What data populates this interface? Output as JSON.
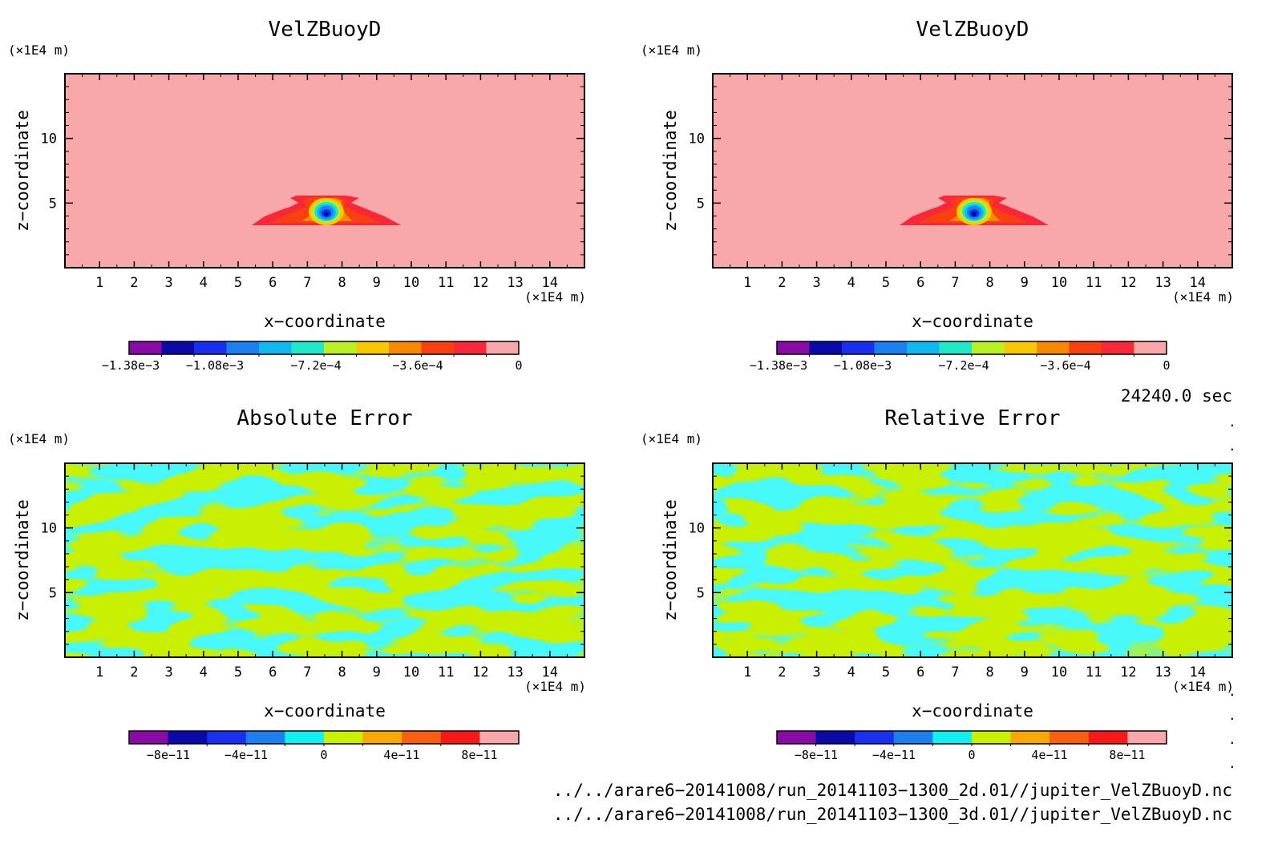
{
  "panels": [
    {
      "title": "VelZBuoyD",
      "y_unit": "(×1E4 m)",
      "x_unit": "(×1E4 m)",
      "xlabel": "x−coordinate",
      "ylabel": "z−coordinate",
      "x_ticks": [
        "1",
        "2",
        "3",
        "4",
        "5",
        "6",
        "7",
        "8",
        "9",
        "10",
        "11",
        "12",
        "13",
        "14"
      ],
      "y_ticks": [
        "5",
        "10"
      ],
      "colorbar_labels": [
        "−1.38e−3",
        "−1.08e−3",
        "−7.2e−4",
        "−3.6e−4",
        "0"
      ],
      "colorbar_colors": [
        "#8a0aa8",
        "#0a0aa8",
        "#1a30f0",
        "#1a80f0",
        "#10b8f0",
        "#20e8c8",
        "#b8f020",
        "#f8c800",
        "#f88800",
        "#f84010",
        "#f82838",
        "#f8a8a8"
      ]
    },
    {
      "title": "VelZBuoyD",
      "y_unit": "(×1E4 m)",
      "x_unit": "(×1E4 m)",
      "xlabel": "x−coordinate",
      "ylabel": "z−coordinate",
      "x_ticks": [
        "1",
        "2",
        "3",
        "4",
        "5",
        "6",
        "7",
        "8",
        "9",
        "10",
        "11",
        "12",
        "13",
        "14"
      ],
      "y_ticks": [
        "5",
        "10"
      ],
      "colorbar_labels": [
        "−1.38e−3",
        "−1.08e−3",
        "−7.2e−4",
        "−3.6e−4",
        "0"
      ],
      "colorbar_colors": [
        "#8a0aa8",
        "#0a0aa8",
        "#1a30f0",
        "#1a80f0",
        "#10b8f0",
        "#20e8c8",
        "#b8f020",
        "#f8c800",
        "#f88800",
        "#f84010",
        "#f82838",
        "#f8a8a8"
      ]
    },
    {
      "title": "Absolute Error",
      "y_unit": "(×1E4 m)",
      "x_unit": "(×1E4 m)",
      "xlabel": "x−coordinate",
      "ylabel": "z−coordinate",
      "x_ticks": [
        "1",
        "2",
        "3",
        "4",
        "5",
        "6",
        "7",
        "8",
        "9",
        "10",
        "11",
        "12",
        "13",
        "14"
      ],
      "y_ticks": [
        "5",
        "10"
      ],
      "colorbar_labels": [
        "−8e−11",
        "−4e−11",
        "0",
        "4e−11",
        "8e−11"
      ],
      "colorbar_colors": [
        "#8a0aa8",
        "#0a0aa8",
        "#1a30f0",
        "#1a80f0",
        "#10f0f0",
        "#c8f000",
        "#f8a800",
        "#f86010",
        "#f81818",
        "#f8a8a8"
      ]
    },
    {
      "title": "Relative Error",
      "y_unit": "(×1E4 m)",
      "x_unit": "(×1E4 m)",
      "xlabel": "x−coordinate",
      "ylabel": "z−coordinate",
      "x_ticks": [
        "1",
        "2",
        "3",
        "4",
        "5",
        "6",
        "7",
        "8",
        "9",
        "10",
        "11",
        "12",
        "13",
        "14"
      ],
      "y_ticks": [
        "5",
        "10"
      ],
      "colorbar_labels": [
        "−8e−11",
        "−4e−11",
        "0",
        "4e−11",
        "8e−11"
      ],
      "colorbar_colors": [
        "#8a0aa8",
        "#0a0aa8",
        "#1a30f0",
        "#1a80f0",
        "#10f0f0",
        "#c8f000",
        "#f8a800",
        "#f86010",
        "#f81818",
        "#f8a8a8"
      ]
    }
  ],
  "time_label": "24240.0 sec",
  "file_lines": [
    "../../arare6−20141008/run_20141103−1300_2d.01//jupiter_VelZBuoyD.nc",
    "../../arare6−20141008/run_20141103−1300_3d.01//jupiter_VelZBuoyD.nc"
  ],
  "colors": {
    "background_field": "#f8a8a8",
    "error_cyan": "#10f0f0",
    "error_yellow": "#c8f000"
  },
  "chart_data": [
    {
      "type": "heatmap",
      "title": "VelZBuoyD",
      "xlabel": "x−coordinate",
      "ylabel": "z−coordinate",
      "x_unit": "(×1E4 m)",
      "y_unit": "(×1E4 m)",
      "xlim": [
        0,
        15
      ],
      "ylim": [
        0,
        15
      ],
      "colorbar_range": [
        -0.00138,
        0
      ],
      "colorbar_ticks": [
        -0.00138,
        -0.00108,
        -0.00072,
        -0.00036,
        0
      ],
      "feature": {
        "description": "negative anomaly centered near x=7.6, z=4",
        "min_value": -0.00138
      }
    },
    {
      "type": "heatmap",
      "title": "VelZBuoyD",
      "xlabel": "x−coordinate",
      "ylabel": "z−coordinate",
      "x_unit": "(×1E4 m)",
      "y_unit": "(×1E4 m)",
      "xlim": [
        0,
        15
      ],
      "ylim": [
        0,
        15
      ],
      "colorbar_range": [
        -0.00138,
        0
      ],
      "colorbar_ticks": [
        -0.00138,
        -0.00108,
        -0.00072,
        -0.00036,
        0
      ],
      "feature": {
        "description": "negative anomaly centered near x=7.6, z=4",
        "min_value": -0.00138
      }
    },
    {
      "type": "heatmap",
      "title": "Absolute Error",
      "xlabel": "x−coordinate",
      "ylabel": "z−coordinate",
      "x_unit": "(×1E4 m)",
      "y_unit": "(×1E4 m)",
      "xlim": [
        0,
        15
      ],
      "ylim": [
        0,
        15
      ],
      "colorbar_range": [
        -1e-10,
        1e-10
      ],
      "colorbar_ticks": [
        -8e-11,
        -4e-11,
        0,
        4e-11,
        8e-11
      ],
      "feature": {
        "description": "noise pattern alternating between 0..2e-11 and -2e-11..0 bands"
      }
    },
    {
      "type": "heatmap",
      "title": "Relative Error",
      "xlabel": "x−coordinate",
      "ylabel": "z−coordinate",
      "x_unit": "(×1E4 m)",
      "y_unit": "(×1E4 m)",
      "xlim": [
        0,
        15
      ],
      "ylim": [
        0,
        15
      ],
      "colorbar_range": [
        -1e-10,
        1e-10
      ],
      "colorbar_ticks": [
        -8e-11,
        -4e-11,
        0,
        4e-11,
        8e-11
      ],
      "feature": {
        "description": "noise pattern alternating between 0..2e-11 and -2e-11..0 bands"
      }
    }
  ]
}
